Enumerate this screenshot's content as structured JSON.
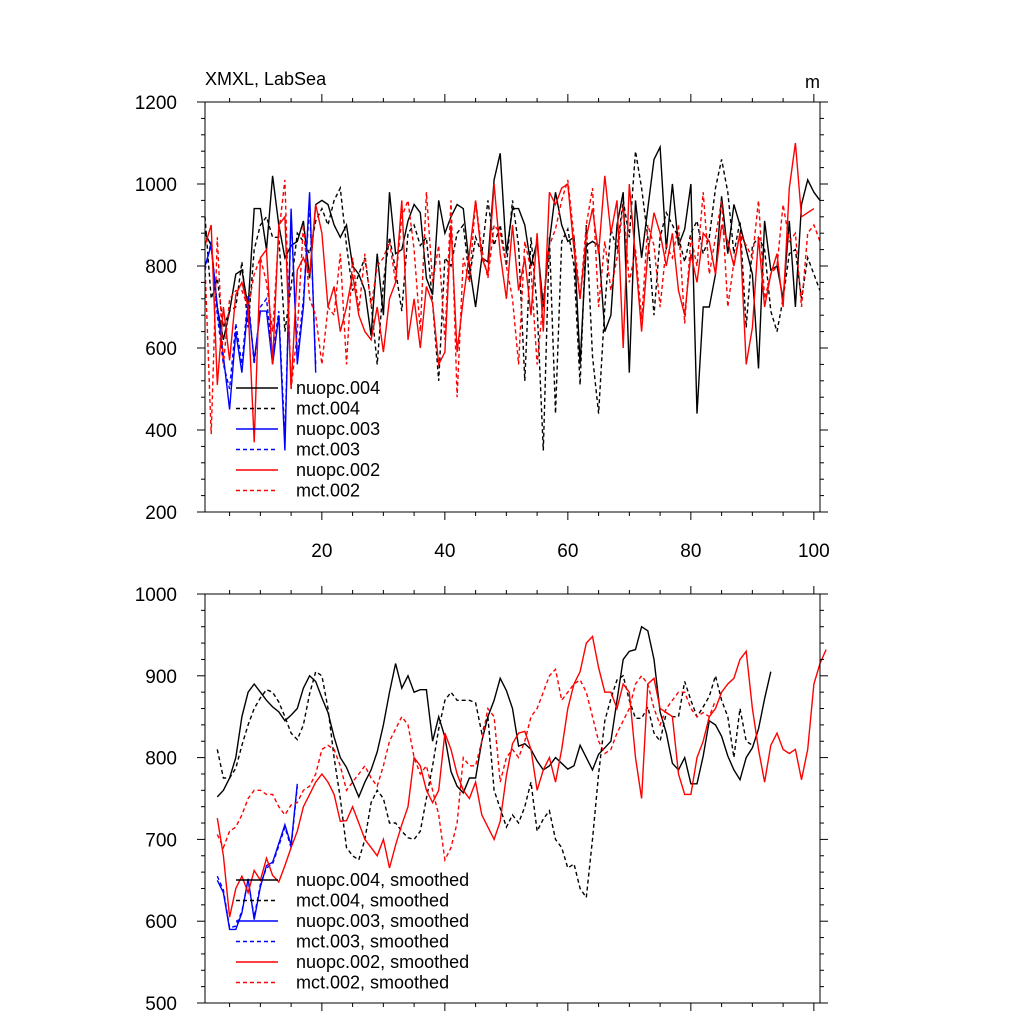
{
  "colors": {
    "black": "#000000",
    "blue": "#0000ff",
    "red": "#ff0000"
  },
  "chart_data": [
    {
      "type": "line",
      "title": "XMXL, LabSea",
      "units": "m",
      "xlim": [
        1,
        101
      ],
      "ylim": [
        200,
        1200
      ],
      "xticks": [
        20,
        40,
        60,
        80,
        100
      ],
      "xtick_labels": [
        "20",
        "40",
        "60",
        "80",
        "100"
      ],
      "yticks": [
        200,
        400,
        600,
        800,
        1000,
        1200
      ],
      "ytick_labels": [
        "200",
        "400",
        "600",
        "800",
        "1000",
        "1200"
      ],
      "legend_position": "bottom-left",
      "series": [
        {
          "name": "nuopc.004",
          "color": "black",
          "dash": false,
          "x_start": 1,
          "values": [
            880,
            850,
            700,
            620,
            690,
            780,
            790,
            700,
            940,
            940,
            840,
            1020,
            900,
            820,
            850,
            860,
            910,
            770,
            950,
            960,
            950,
            900,
            870,
            900,
            800,
            780,
            740,
            630,
            830,
            680,
            980,
            830,
            840,
            910,
            950,
            930,
            770,
            730,
            960,
            880,
            920,
            950,
            940,
            800,
            700,
            820,
            810,
            1010,
            1075,
            830,
            940,
            940,
            900,
            800,
            860,
            700,
            860,
            980,
            900,
            860,
            870,
            560,
            850,
            860,
            850,
            640,
            680,
            900,
            980,
            540,
            960,
            820,
            940,
            1060,
            1090,
            840,
            1000,
            850,
            890,
            1000,
            440,
            700,
            700,
            780,
            970,
            830,
            950,
            900,
            840,
            780,
            550,
            910,
            790,
            800,
            720,
            910,
            700,
            950,
            1010,
            980,
            960
          ]
        },
        {
          "name": "mct.004",
          "color": "black",
          "dash": true,
          "x_start": 1,
          "values": [
            920,
            720,
            770,
            650,
            690,
            700,
            810,
            650,
            840,
            900,
            920,
            870,
            870,
            640,
            750,
            880,
            860,
            830,
            910,
            940,
            900,
            960,
            990,
            850,
            740,
            780,
            820,
            710,
            560,
            760,
            870,
            790,
            690,
            880,
            900,
            850,
            870,
            710,
            520,
            820,
            800,
            880,
            900,
            770,
            870,
            830,
            960,
            850,
            900,
            800,
            960,
            850,
            520,
            870,
            700,
            350,
            870,
            440,
            860,
            890,
            800,
            510,
            900,
            580,
            440,
            700,
            890,
            840,
            960,
            870,
            1080,
            990,
            870,
            680,
            870,
            930,
            900,
            870,
            810,
            880,
            910,
            830,
            870,
            990,
            1060,
            980,
            830,
            910,
            650,
            850,
            870,
            840,
            690,
            640,
            720,
            830,
            840,
            720,
            820,
            780,
            740
          ]
        },
        {
          "name": "nuopc.003",
          "color": "blue",
          "dash": false,
          "x_start": 1,
          "values": [
            800,
            850,
            700,
            580,
            450,
            640,
            540,
            710,
            570,
            690,
            690,
            560,
            680,
            350,
            940,
            560,
            700,
            980,
            540
          ]
        },
        {
          "name": "mct.003",
          "color": "blue",
          "dash": true,
          "x_start": 1,
          "values": [
            790,
            860,
            680,
            560,
            500,
            660,
            560,
            730,
            560,
            700,
            720,
            580,
            690,
            380,
            920,
            580,
            720,
            950,
            560
          ]
        },
        {
          "name": "nuopc.002",
          "color": "red",
          "dash": false,
          "x_start": 1,
          "values": [
            850,
            900,
            510,
            700,
            570,
            730,
            760,
            700,
            370,
            820,
            840,
            560,
            900,
            920,
            500,
            790,
            820,
            780,
            950,
            880,
            700,
            750,
            640,
            700,
            780,
            680,
            640,
            620,
            700,
            590,
            720,
            760,
            960,
            620,
            720,
            600,
            750,
            710,
            560,
            590,
            900,
            590,
            720,
            830,
            960,
            820,
            780,
            1000,
            830,
            720,
            900,
            740,
            820,
            680,
            880,
            640,
            980,
            950,
            990,
            1000,
            840,
            720,
            870,
            940,
            830,
            1020,
            880,
            960,
            600,
            1000,
            820,
            640,
            830,
            930,
            880,
            800,
            880,
            740,
            680,
            830,
            760,
            880,
            860,
            780,
            900,
            860,
            800,
            880,
            560,
            650,
            870,
            700,
            780,
            830,
            700,
            990,
            1100,
            920,
            930,
            940
          ]
        },
        {
          "name": "mct.002",
          "color": "red",
          "dash": true,
          "x_start": 1,
          "values": [
            800,
            390,
            870,
            560,
            720,
            740,
            740,
            700,
            780,
            820,
            760,
            640,
            880,
            1010,
            500,
            640,
            900,
            720,
            680,
            560,
            700,
            680,
            830,
            560,
            820,
            690,
            830,
            700,
            800,
            820,
            860,
            760,
            920,
            960,
            840,
            640,
            980,
            760,
            850,
            620,
            960,
            480,
            820,
            760,
            960,
            840,
            770,
            900,
            880,
            800,
            720,
            560,
            860,
            790,
            560,
            720,
            850,
            890,
            960,
            1010,
            870,
            720,
            900,
            990,
            700,
            860,
            740,
            820,
            950,
            760,
            840,
            670,
            900,
            850,
            700,
            850,
            820,
            900,
            660,
            870,
            800,
            980,
            780,
            870,
            960,
            700,
            810,
            880,
            850,
            820,
            960,
            720,
            780,
            800,
            950,
            860,
            880,
            700,
            880,
            900,
            860
          ]
        }
      ]
    },
    {
      "type": "line",
      "title": "",
      "xlim": [
        1,
        101
      ],
      "ylim": [
        500,
        1000
      ],
      "yticks": [
        500,
        600,
        700,
        800,
        900,
        1000
      ],
      "ytick_labels": [
        "500",
        "600",
        "700",
        "800",
        "900",
        "1000"
      ],
      "legend_position": "bottom-left",
      "series": [
        {
          "name": "nuopc.004, smoothed",
          "color": "black",
          "dash": false,
          "x_start": 3,
          "values": [
            752,
            760,
            775,
            800,
            850,
            880,
            890,
            880,
            870,
            862,
            856,
            845,
            852,
            860,
            885,
            900,
            893,
            873,
            855,
            825,
            800,
            788,
            770,
            752,
            770,
            785,
            807,
            840,
            880,
            915,
            885,
            900,
            880,
            883,
            883,
            820,
            850,
            825,
            783,
            765,
            757,
            775,
            775,
            820,
            850,
            870,
            897,
            882,
            860,
            814,
            817,
            810,
            796,
            785,
            790,
            800,
            793,
            786,
            790,
            815,
            800,
            785,
            804,
            812,
            820,
            870,
            920,
            930,
            932,
            960,
            955,
            920,
            856,
            830,
            793,
            785,
            800,
            768,
            768,
            802,
            845,
            840,
            826,
            802,
            785,
            773,
            800,
            812,
            835,
            872,
            905
          ]
        },
        {
          "name": "mct.004, smoothed",
          "color": "black",
          "dash": true,
          "x_start": 3,
          "values": [
            810,
            775,
            775,
            787,
            815,
            840,
            860,
            873,
            883,
            880,
            868,
            850,
            830,
            822,
            840,
            878,
            905,
            900,
            860,
            800,
            750,
            690,
            680,
            675,
            700,
            745,
            760,
            750,
            720,
            720,
            710,
            702,
            700,
            710,
            750,
            790,
            835,
            870,
            880,
            870,
            870,
            870,
            867,
            830,
            850,
            760,
            738,
            715,
            730,
            720,
            740,
            770,
            710,
            725,
            735,
            700,
            690,
            665,
            670,
            640,
            629,
            700,
            780,
            845,
            872,
            895,
            900,
            870,
            848,
            848,
            862,
            830,
            820,
            855,
            850,
            850,
            893,
            870,
            850,
            862,
            875,
            900,
            870,
            850,
            800,
            860,
            820,
            815
          ]
        },
        {
          "name": "nuopc.003, smoothed",
          "color": "blue",
          "dash": false,
          "x_start": 3,
          "values": [
            650,
            635,
            590,
            590,
            610,
            652,
            602,
            642,
            668,
            672,
            695,
            718,
            693,
            768
          ]
        },
        {
          "name": "mct.003, smoothed",
          "color": "blue",
          "dash": true,
          "x_start": 3,
          "values": [
            655,
            638,
            592,
            594,
            612,
            650,
            605,
            645,
            665,
            670,
            692,
            715,
            690,
            765
          ]
        },
        {
          "name": "nuopc.002, smoothed",
          "color": "red",
          "dash": false,
          "x_start": 3,
          "values": [
            726,
            680,
            605,
            640,
            655,
            635,
            662,
            650,
            677,
            656,
            648,
            668,
            690,
            710,
            740,
            755,
            770,
            780,
            770,
            755,
            722,
            723,
            740,
            720,
            700,
            690,
            680,
            700,
            665,
            693,
            718,
            740,
            800,
            790,
            760,
            745,
            760,
            830,
            810,
            780,
            760,
            750,
            770,
            730,
            715,
            700,
            722,
            778,
            817,
            830,
            832,
            810,
            760,
            785,
            800,
            770,
            810,
            860,
            890,
            905,
            940,
            948,
            910,
            880,
            880,
            860,
            890,
            880,
            800,
            750,
            890,
            897,
            860,
            855,
            850,
            780,
            755,
            755,
            800,
            820,
            850,
            860,
            880,
            890,
            897,
            920,
            930,
            860,
            810,
            770,
            815,
            830,
            810,
            805,
            810,
            773,
            810,
            890,
            915,
            932
          ]
        },
        {
          "name": "mct.002, smoothed",
          "color": "red",
          "dash": true,
          "x_start": 3,
          "values": [
            706,
            690,
            710,
            715,
            730,
            750,
            760,
            760,
            755,
            755,
            740,
            730,
            742,
            745,
            760,
            765,
            780,
            810,
            815,
            810,
            790,
            760,
            770,
            780,
            790,
            775,
            765,
            790,
            820,
            835,
            850,
            840,
            800,
            780,
            790,
            760,
            730,
            675,
            690,
            720,
            800,
            790,
            790,
            820,
            860,
            850,
            770,
            800,
            810,
            800,
            820,
            850,
            860,
            880,
            900,
            908,
            870,
            880,
            890,
            895,
            880,
            850,
            820,
            805,
            810,
            830,
            845,
            860,
            890,
            900,
            890,
            860,
            840,
            860,
            870,
            880,
            880,
            860,
            850,
            855,
            850,
            870
          ]
        }
      ]
    }
  ]
}
